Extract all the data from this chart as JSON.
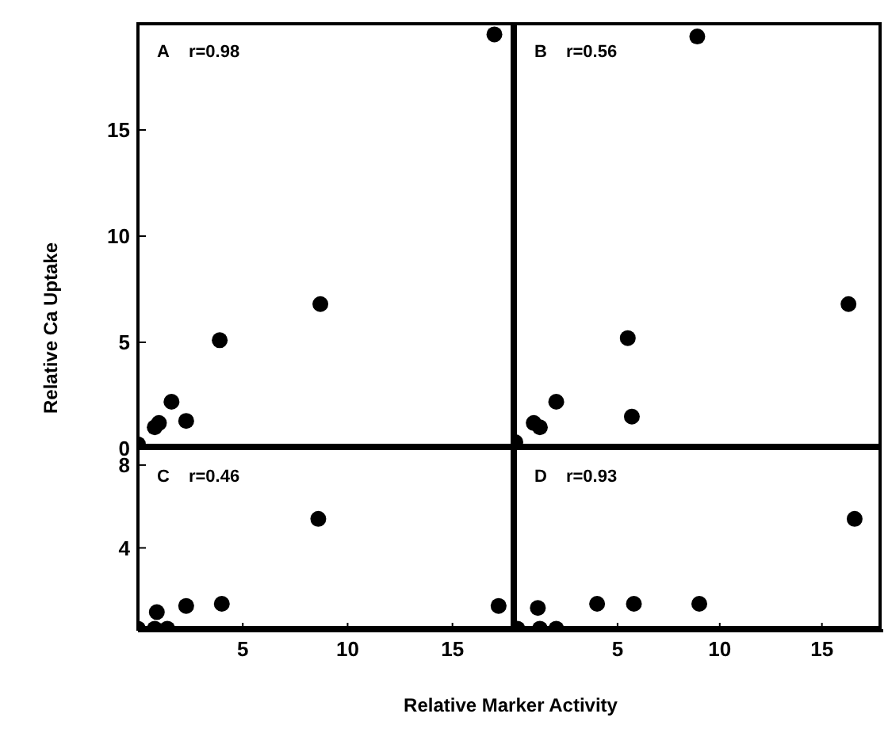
{
  "chart_data": [
    {
      "type": "scatter",
      "title": "A",
      "annotations": [
        "r=0.98"
      ],
      "ylabel": "Relative Ca Uptake",
      "marker": "circle",
      "tick_labels": "y",
      "xlim": [
        0,
        18
      ],
      "xticks": [
        5,
        10,
        15
      ],
      "ylim": [
        0,
        20
      ],
      "yticks": [
        0,
        5,
        10,
        15
      ],
      "x": [
        0,
        0.8,
        1.0,
        1.6,
        2.3,
        3.9,
        8.7,
        17.0
      ],
      "series": [
        {
          "color": "#000000",
          "values": [
            0.2,
            1.0,
            1.2,
            2.2,
            1.3,
            5.1,
            6.8,
            19.5
          ]
        }
      ]
    },
    {
      "type": "scatter",
      "title": "B",
      "annotations": [
        "r=0.56"
      ],
      "marker": "circle",
      "tick_labels": false,
      "xlim": [
        0,
        18
      ],
      "xticks": [
        5,
        10,
        15
      ],
      "ylim": [
        0,
        20
      ],
      "yticks": [
        0,
        5,
        10,
        15
      ],
      "x": [
        0,
        0.9,
        1.2,
        2.0,
        5.5,
        5.7,
        8.9,
        16.3
      ],
      "series": [
        {
          "color": "#000000",
          "values": [
            0.3,
            1.2,
            1.0,
            2.2,
            5.2,
            1.5,
            19.4,
            6.8
          ]
        }
      ]
    },
    {
      "type": "scatter",
      "title": "C",
      "annotations": [
        "r=0.46"
      ],
      "xlabel": "Relative Marker Activity",
      "marker": "circle",
      "xlim": [
        0,
        18
      ],
      "xticks": [
        5,
        10,
        15
      ],
      "ylim": [
        0,
        8.8
      ],
      "yticks": [
        4,
        8
      ],
      "x": [
        0,
        0.8,
        1.4,
        0.9,
        2.3,
        4.0,
        8.6,
        17.2
      ],
      "series": [
        {
          "color": "#000000",
          "values": [
            0.1,
            0.1,
            0.1,
            0.9,
            1.2,
            1.3,
            5.4,
            1.2
          ]
        }
      ]
    },
    {
      "type": "scatter",
      "title": "D",
      "annotations": [
        "r=0.93"
      ],
      "marker": "circle",
      "tick_labels": "x",
      "xlim": [
        0,
        18
      ],
      "xticks": [
        5,
        10,
        15
      ],
      "ylim": [
        0,
        8.8
      ],
      "yticks": [
        4,
        8
      ],
      "x": [
        0.1,
        1.1,
        1.2,
        2.0,
        4.0,
        5.8,
        9.0,
        16.6
      ],
      "series": [
        {
          "color": "#000000",
          "values": [
            0.1,
            1.1,
            0.1,
            0.1,
            1.3,
            1.3,
            1.3,
            5.4
          ]
        }
      ]
    }
  ]
}
